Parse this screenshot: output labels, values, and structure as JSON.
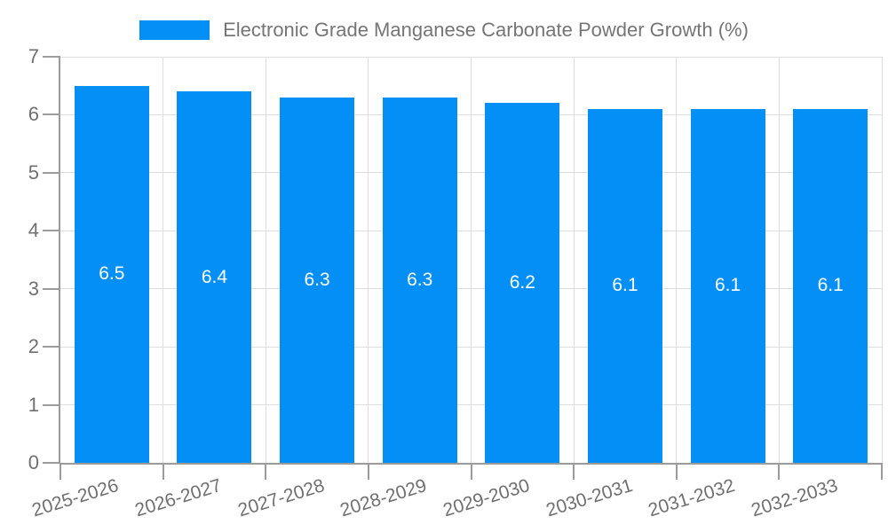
{
  "chart_data": {
    "type": "bar",
    "title": "Electronic Grade Manganese Carbonate Powder Growth (%)",
    "categories": [
      "2025-2026",
      "2026-2027",
      "2027-2028",
      "2028-2029",
      "2029-2030",
      "2030-2031",
      "2031-2032",
      "2032-2033"
    ],
    "values": [
      6.5,
      6.4,
      6.3,
      6.3,
      6.2,
      6.1,
      6.1,
      6.1
    ],
    "value_labels": [
      "6.5",
      "6.4",
      "6.3",
      "6.3",
      "6.2",
      "6.1",
      "6.1",
      "6.1"
    ],
    "xlabel": "",
    "ylabel": "",
    "ylim": [
      0,
      7
    ],
    "y_ticks": [
      "0",
      "1",
      "2",
      "3",
      "4",
      "5",
      "6",
      "7"
    ],
    "grid": true,
    "legend_position": "top",
    "colors": {
      "bar": "#048ff7",
      "axis": "#9b9b9b",
      "gridline": "#dedede",
      "axis_text": "#707070",
      "legend_text": "#757575",
      "value_text": "#ffffff",
      "background": "#ffffff"
    }
  }
}
